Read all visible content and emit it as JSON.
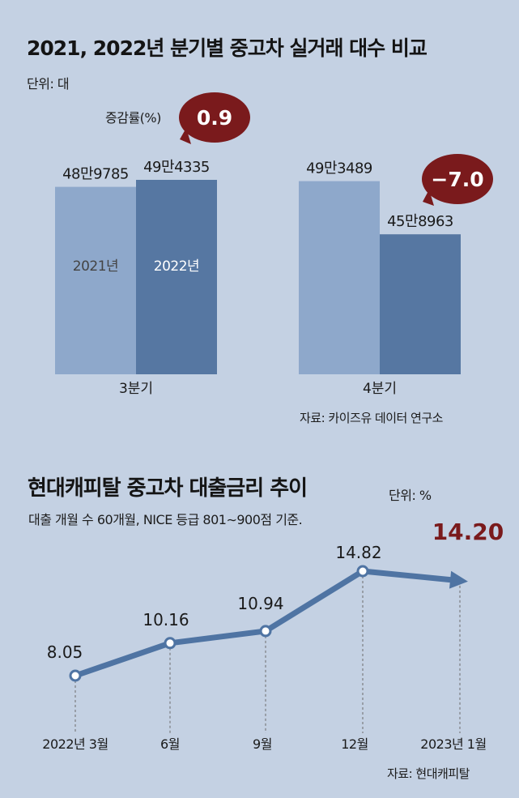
{
  "chart_data": [
    {
      "type": "bar",
      "title": "2021, 2022년 분기별 중고차 실거래 대수 비교",
      "unit_label": "단위: 대",
      "rate_label": "증감률(%)",
      "categories": [
        "3분기",
        "4분기"
      ],
      "series": [
        {
          "name": "2021년",
          "values": [
            489785,
            493489
          ],
          "value_labels": [
            "48만9785",
            "49만3489"
          ],
          "color": "#8ea8cb"
        },
        {
          "name": "2022년",
          "values": [
            494335,
            458963
          ],
          "value_labels": [
            "49만4335",
            "45만8963"
          ],
          "color": "#5677a2"
        }
      ],
      "change_rates": [
        "0.9",
        "−7.0"
      ],
      "source": "자료: 카이즈유 데이터 연구소"
    },
    {
      "type": "line",
      "title": "현대캐피탈 중고차 대출금리 추이",
      "unit_label": "단위: %",
      "subtitle": "대출 개월 수 60개월, NICE 등급 801∼900점 기준.",
      "x": [
        "2022년 3월",
        "6월",
        "9월",
        "12월",
        "2023년 1월"
      ],
      "y": [
        8.05,
        10.16,
        10.94,
        14.82,
        14.2
      ],
      "y_labels": [
        "8.05",
        "10.16",
        "10.94",
        "14.82",
        "14.20"
      ],
      "source": "자료: 현대캐피탈"
    }
  ]
}
